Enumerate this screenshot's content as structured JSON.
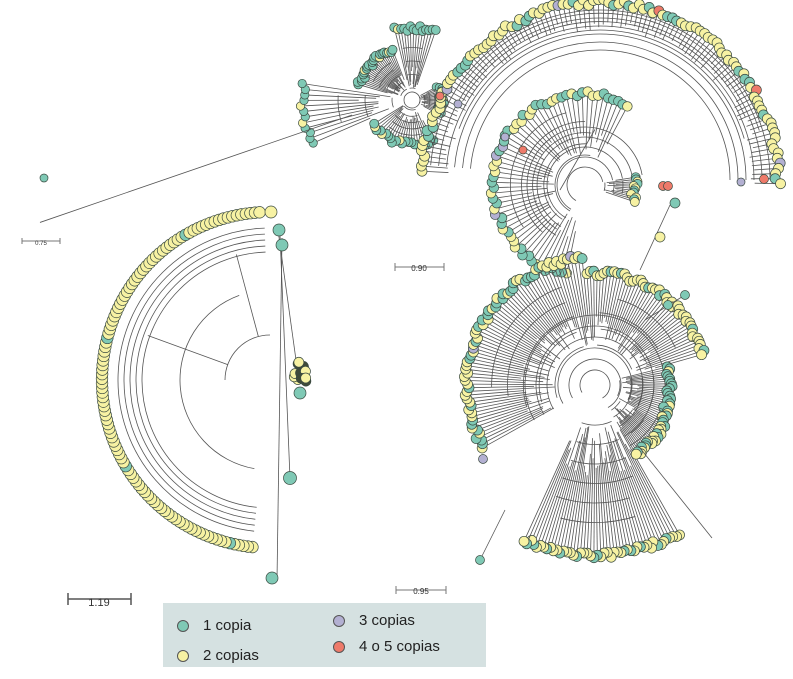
{
  "figure": {
    "colors": {
      "one": "#7fc9b5",
      "two": "#f7f2a3",
      "three": "#b3b0d2",
      "four_five": "#ee7a6a",
      "branch": "#555555",
      "node_stroke": "#3a4a40"
    },
    "scale_bars": [
      {
        "label": "0.75"
      },
      {
        "label": "0.90"
      },
      {
        "label": "1.19"
      },
      {
        "label": "0.95"
      }
    ],
    "legend": {
      "items": [
        {
          "label": "1 copia",
          "color_key": "one"
        },
        {
          "label": "2 copias",
          "color_key": "two"
        },
        {
          "label": "3 copias",
          "color_key": "three"
        },
        {
          "label": "4 o 5 copias",
          "color_key": "four_five"
        }
      ]
    }
  }
}
